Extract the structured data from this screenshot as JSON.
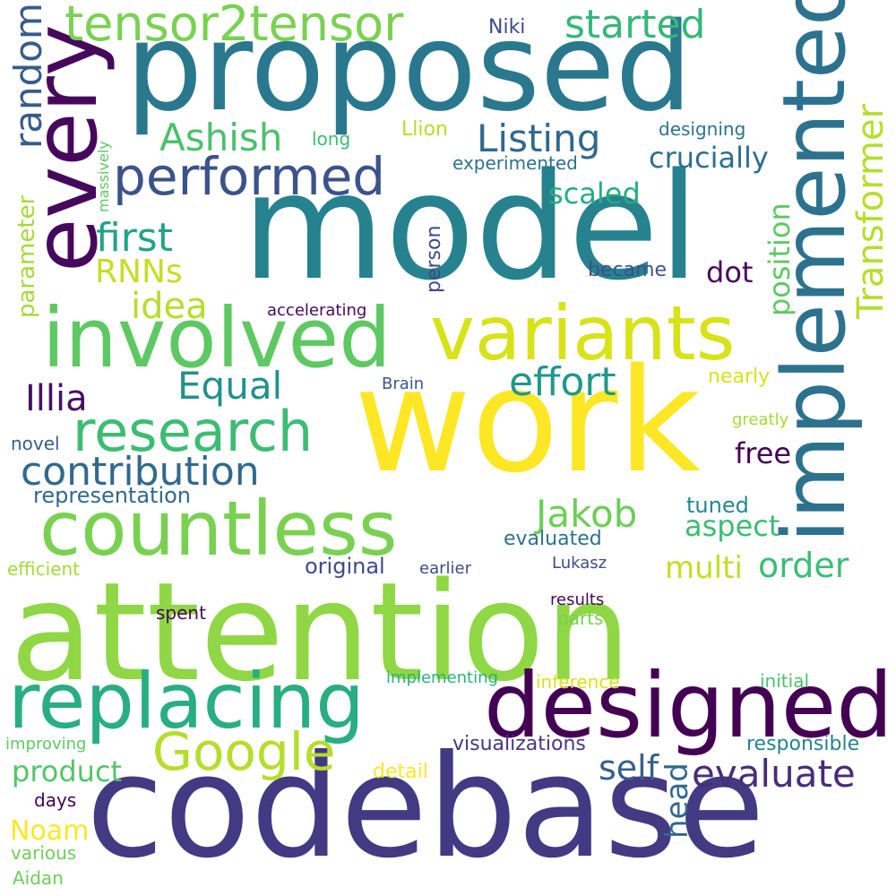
{
  "words": [
    {
      "text": "attention",
      "color": "#8fd744"
    },
    {
      "text": "codebase",
      "color": "#443983"
    },
    {
      "text": "work",
      "color": "#fde725"
    },
    {
      "text": "model",
      "color": "#26828e"
    },
    {
      "text": "proposed",
      "color": "#2a788e"
    },
    {
      "text": "implemented",
      "color": "#2c728e"
    },
    {
      "text": "every",
      "color": "#46085c"
    },
    {
      "text": "designed",
      "color": "#440154"
    },
    {
      "text": "involved",
      "color": "#5ec962"
    },
    {
      "text": "variants",
      "color": "#d8e219"
    },
    {
      "text": "replacing",
      "color": "#28ae80"
    },
    {
      "text": "countless",
      "color": "#7ad151"
    },
    {
      "text": "tensor2tensor",
      "color": "#7ad151"
    },
    {
      "text": "performed",
      "color": "#3b528b"
    },
    {
      "text": "research",
      "color": "#3dbc74"
    },
    {
      "text": "Google",
      "color": "#b5de2b"
    },
    {
      "text": "contribution",
      "color": "#30698e"
    },
    {
      "text": "Transformer",
      "color": "#b5de2b"
    },
    {
      "text": "started",
      "color": "#35b779"
    },
    {
      "text": "Listing",
      "color": "#31688e"
    },
    {
      "text": "Ashish",
      "color": "#4ac16d"
    },
    {
      "text": "random",
      "color": "#375b8d"
    },
    {
      "text": "first",
      "color": "#20a386"
    },
    {
      "text": "effort",
      "color": "#1f988b"
    },
    {
      "text": "Jakob",
      "color": "#6ece58"
    },
    {
      "text": "Equal",
      "color": "#21918c"
    },
    {
      "text": "Illia",
      "color": "#471164"
    },
    {
      "text": "evaluate",
      "color": "#472d7b"
    },
    {
      "text": "RNNs",
      "color": "#c2df23"
    },
    {
      "text": "idea",
      "color": "#b5de2b"
    },
    {
      "text": "order",
      "color": "#3dbc74"
    },
    {
      "text": "self",
      "color": "#355f8d"
    },
    {
      "text": "crucially",
      "color": "#2e6f8e"
    },
    {
      "text": "position",
      "color": "#5ec962"
    },
    {
      "text": "product",
      "color": "#52c569"
    },
    {
      "text": "head",
      "color": "#31688e"
    },
    {
      "text": "multi",
      "color": "#c2df23"
    },
    {
      "text": "aspect",
      "color": "#3dbc74"
    },
    {
      "text": "free",
      "color": "#440154"
    },
    {
      "text": "scaled",
      "color": "#27ad81"
    },
    {
      "text": "dot",
      "color": "#46085c"
    },
    {
      "text": "Noam",
      "color": "#fde725"
    },
    {
      "text": "parameter",
      "color": "#a5db36"
    },
    {
      "text": "tuned",
      "color": "#23888e"
    },
    {
      "text": "evaluated",
      "color": "#2c728e"
    },
    {
      "text": "original",
      "color": "#3e4a89"
    },
    {
      "text": "representation",
      "color": "#31688e"
    },
    {
      "text": "visualizations",
      "color": "#443983"
    },
    {
      "text": "responsible",
      "color": "#26828e"
    },
    {
      "text": "became",
      "color": "#3b528b"
    },
    {
      "text": "person",
      "color": "#3e4989"
    },
    {
      "text": "Niki",
      "color": "#3e4989"
    },
    {
      "text": "Llion",
      "color": "#b5de2b"
    },
    {
      "text": "long",
      "color": "#3dbc74"
    },
    {
      "text": "designing",
      "color": "#2c728e"
    },
    {
      "text": "experimented",
      "color": "#2c728e"
    },
    {
      "text": "accelerating",
      "color": "#46085c"
    },
    {
      "text": "nearly",
      "color": "#d8e219"
    },
    {
      "text": "Brain",
      "color": "#39568c"
    },
    {
      "text": "greatly",
      "color": "#a5db36"
    },
    {
      "text": "novel",
      "color": "#355f8d"
    },
    {
      "text": "efficient",
      "color": "#a5db36"
    },
    {
      "text": "earlier",
      "color": "#3e4a89"
    },
    {
      "text": "Lukasz",
      "color": "#3e4a89"
    },
    {
      "text": "spent",
      "color": "#46085c"
    },
    {
      "text": "results",
      "color": "#46085c"
    },
    {
      "text": "parts",
      "color": "#7ad151"
    },
    {
      "text": "implementing",
      "color": "#2ab07f"
    },
    {
      "text": "inference",
      "color": "#d8e219"
    },
    {
      "text": "initial",
      "color": "#4ac16d"
    },
    {
      "text": "improving",
      "color": "#5ec962"
    },
    {
      "text": "detail",
      "color": "#fde725"
    },
    {
      "text": "days",
      "color": "#440154"
    },
    {
      "text": "various",
      "color": "#6ece58"
    },
    {
      "text": "Aidan",
      "color": "#6ece58"
    },
    {
      "text": "massively",
      "color": "#5ec962"
    }
  ]
}
